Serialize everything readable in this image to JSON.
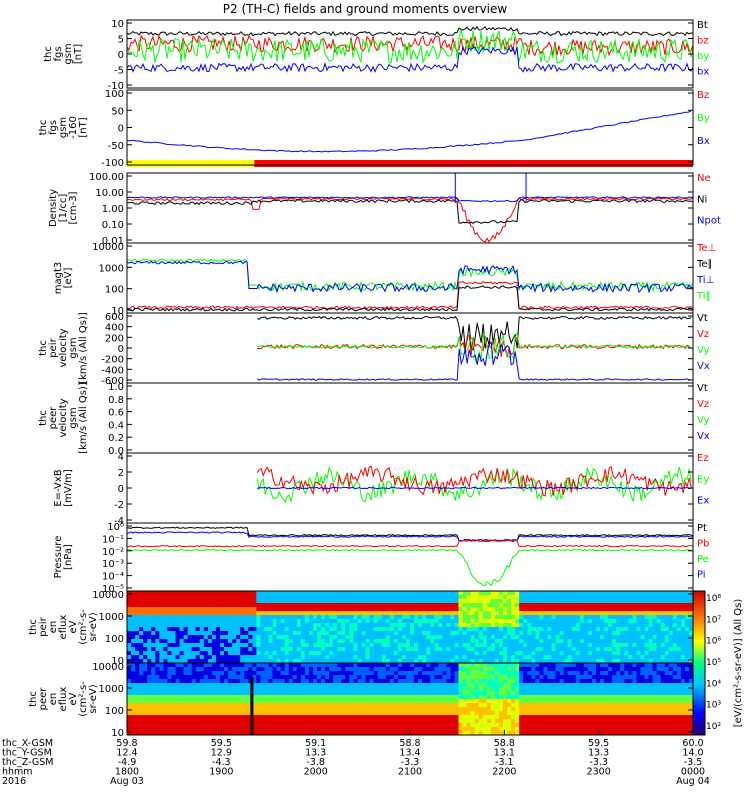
{
  "title": "P2 (TH-C) fields and ground moments overview",
  "colors": {
    "black": "#000000",
    "red": "#ff0000",
    "green": "#00ff00",
    "blue": "#0000ff",
    "yellow": "#ffff00"
  },
  "panels": [
    {
      "id": "fgs",
      "ylabel": [
        "thc",
        "fgs",
        "gsm",
        "[nT]"
      ],
      "ticks": [
        "10",
        "5",
        "0",
        "-5",
        "-10"
      ],
      "legend": [
        {
          "t": "Bt",
          "c": "black"
        },
        {
          "t": "bz",
          "c": "red"
        },
        {
          "t": "by",
          "c": "green"
        },
        {
          "t": "bx",
          "c": "blue"
        }
      ]
    },
    {
      "id": "fgs160",
      "ylabel": [
        "thc",
        "fgs",
        "gsm",
        "-160",
        "[nT]"
      ],
      "ticks": [
        "100",
        "50",
        "0",
        "-50",
        "-100"
      ],
      "legend": [
        {
          "t": "Bz",
          "c": "red"
        },
        {
          "t": "By",
          "c": "green"
        },
        {
          "t": "Bx",
          "c": "blue"
        }
      ]
    },
    {
      "id": "density",
      "ylabel": [
        "Density",
        "[1/cc]",
        "[cm-3]"
      ],
      "ticks": [
        "100.00",
        "10.00",
        "1.00",
        "0.10",
        "0.01"
      ],
      "legend": [
        {
          "t": "Ne",
          "c": "red"
        },
        {
          "t": "Ni",
          "c": "black"
        },
        {
          "t": "Npot",
          "c": "blue"
        }
      ]
    },
    {
      "id": "temp",
      "ylabel": [
        "magt3",
        "[eV]"
      ],
      "ticks": [
        "10000",
        "1000",
        "100",
        "10"
      ],
      "legend": [
        {
          "t": "Te⊥",
          "c": "red"
        },
        {
          "t": "Te∥",
          "c": "black"
        },
        {
          "t": "Ti⊥",
          "c": "blue"
        },
        {
          "t": "Ti∥",
          "c": "green"
        }
      ]
    },
    {
      "id": "peirvel",
      "ylabel": [
        "thc",
        "peir",
        "velocity",
        "gsm",
        "[km/s (All Qs)]"
      ],
      "ticks": [
        "600",
        "400",
        "200",
        "0",
        "-200",
        "-400",
        "-600"
      ],
      "legend": [
        {
          "t": "Vt",
          "c": "black"
        },
        {
          "t": "Vz",
          "c": "red"
        },
        {
          "t": "Vy",
          "c": "green"
        },
        {
          "t": "Vx",
          "c": "blue"
        }
      ]
    },
    {
      "id": "peervel",
      "ylabel": [
        "thc",
        "peer",
        "velocity",
        "gsm",
        "[km/s (All Qs)]"
      ],
      "ticks": [
        "1.0",
        "0.8",
        "0.6",
        "0.4",
        "0.2",
        "0.0"
      ],
      "legend": [
        {
          "t": "Vt",
          "c": "black"
        },
        {
          "t": "Vz",
          "c": "red"
        },
        {
          "t": "Vy",
          "c": "green"
        },
        {
          "t": "Vx",
          "c": "blue"
        }
      ]
    },
    {
      "id": "efield",
      "ylabel": [
        "E=-VxB",
        "[mV/m]"
      ],
      "ticks": [
        "4",
        "2",
        "0",
        "-2",
        "-4"
      ],
      "legend": [
        {
          "t": "Ez",
          "c": "red"
        },
        {
          "t": "Ey",
          "c": "green"
        },
        {
          "t": "Ex",
          "c": "blue"
        }
      ]
    },
    {
      "id": "pressure",
      "ylabel": [
        "Pressure",
        "[nPa]"
      ],
      "ticks": [
        "10⁰",
        "10⁻¹",
        "10⁻²",
        "10⁻³",
        "10⁻⁴",
        "10⁻⁵"
      ],
      "legend": [
        {
          "t": "Pt",
          "c": "black"
        },
        {
          "t": "Pb",
          "c": "red"
        },
        {
          "t": "Pe",
          "c": "green"
        },
        {
          "t": "Pi",
          "c": "blue"
        }
      ]
    },
    {
      "id": "peirspec",
      "ylabel": [
        "thc",
        "peir",
        "en",
        "eflux",
        "eV",
        "(cm²-s-",
        "sr-eV)"
      ],
      "ticks": [
        "10000",
        "1000",
        "100",
        "10"
      ],
      "legend": []
    },
    {
      "id": "peerspec",
      "ylabel": [
        "thc",
        "peer",
        "en",
        "eflux",
        "eV",
        "(cm²-s-",
        "sr-eV)"
      ],
      "ticks": [
        "10000",
        "1000",
        "100",
        "10"
      ],
      "legend": []
    }
  ],
  "colorbar": {
    "ticks": [
      "10⁸",
      "10⁷",
      "10⁶",
      "10⁵",
      "10⁴",
      "10³",
      "10²"
    ],
    "label": "[eV/(cm²-s-sr-eV)] (All Qs)"
  },
  "xaxis": {
    "row_labels": [
      "thc_X-GSM",
      "thc_Y-GSM",
      "thc_Z-GSM",
      "hhmm",
      "2016"
    ],
    "columns": [
      [
        "59.8",
        "12.4",
        "-4.9",
        "1800",
        "Aug 03"
      ],
      [
        "59.5",
        "12.9",
        "-4.3",
        "1900",
        ""
      ],
      [
        "59.1",
        "13.3",
        "-3.8",
        "2000",
        ""
      ],
      [
        "58.8",
        "13.4",
        "-3.3",
        "2100",
        ""
      ],
      [
        "58.8",
        "13.1",
        "-3.1",
        "2200",
        ""
      ],
      [
        "59.5",
        "13.3",
        "-3.3",
        "2300",
        ""
      ],
      [
        "60.0",
        "14.0",
        "-3.5",
        "0000",
        "Aug 04"
      ]
    ]
  },
  "chart_data": {
    "type": "line",
    "title": "P2 (TH-C) fields and ground moments overview",
    "x": {
      "label": "hhmm",
      "ticks": [
        "1800",
        "1900",
        "2000",
        "2100",
        "2200",
        "2300",
        "0000"
      ],
      "range": [
        "2016-08-03 18:00",
        "2016-08-04 00:00"
      ]
    },
    "panels": [
      {
        "name": "thc fgs gsm [nT]",
        "ylim": [
          -10,
          10
        ],
        "series": [
          "Bt",
          "bz",
          "by",
          "bx"
        ],
        "approx_levels": {
          "Bt": 6,
          "bz": 3,
          "by": 0,
          "bx": -4
        }
      },
      {
        "name": "thc fgs gsm -160 [nT]",
        "ylim": [
          -125,
          100
        ],
        "series": [
          "Bz",
          "By",
          "Bx"
        ],
        "approx_levels": {
          "Bx_start": -50,
          "Bx_min": -80,
          "Bx_end": 30
        }
      },
      {
        "name": "Density [1/cc]",
        "scale": "log",
        "ylim": [
          0.01,
          100
        ],
        "series": [
          "Ne",
          "Ni",
          "Npot"
        ],
        "approx_levels": {
          "typical": 4,
          "dip_min": 0.02
        }
      },
      {
        "name": "magt3 [eV]",
        "scale": "log",
        "ylim": [
          10,
          10000
        ],
        "series": [
          "Te⊥",
          "Te∥",
          "Ti⊥",
          "Ti∥"
        ],
        "approx_levels": {
          "Ti_early": 1500,
          "Ti_later": 150,
          "Te": 20
        }
      },
      {
        "name": "thc peir velocity gsm [km/s (All Qs)]",
        "ylim": [
          -600,
          600
        ],
        "series": [
          "Vt",
          "Vz",
          "Vy",
          "Vx"
        ]
      },
      {
        "name": "thc peer velocity gsm [km/s (All Qs)]",
        "ylim": [
          0,
          1
        ],
        "series": [
          "Vt",
          "Vz",
          "Vy",
          "Vx"
        ]
      },
      {
        "name": "E=-VxB [mV/m]",
        "ylim": [
          -4,
          4
        ],
        "series": [
          "Ez",
          "Ey",
          "Ex"
        ]
      },
      {
        "name": "Pressure [nPa]",
        "scale": "log",
        "ylim": [
          1e-05,
          1
        ],
        "series": [
          "Pt",
          "Pb",
          "Pe",
          "Pi"
        ]
      },
      {
        "name": "thc peir en eflux",
        "type": "heatmap",
        "ylim": [
          5,
          30000
        ],
        "scale": "log"
      },
      {
        "name": "thc peer en eflux",
        "type": "heatmap",
        "ylim": [
          5,
          30000
        ],
        "scale": "log"
      }
    ],
    "colorbar": {
      "scale": "log",
      "range": [
        100,
        100000000
      ]
    }
  }
}
